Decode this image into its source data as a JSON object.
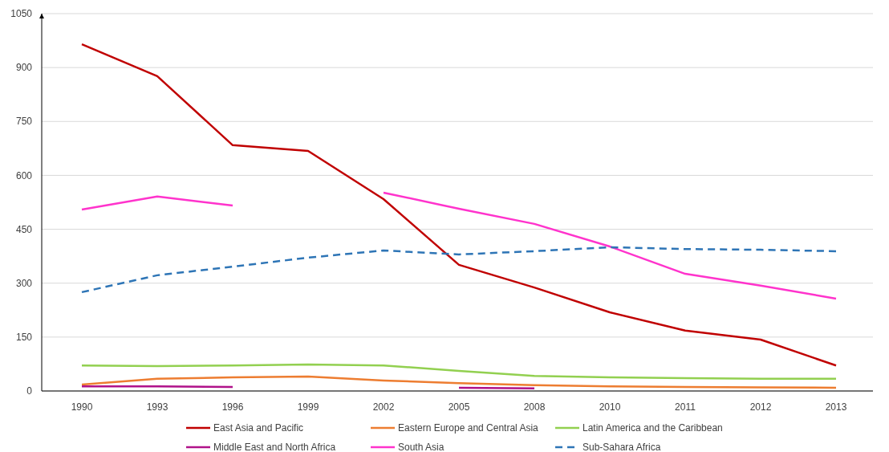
{
  "chart_data": {
    "type": "line",
    "categories": [
      "1990",
      "1993",
      "1996",
      "1999",
      "2002",
      "2005",
      "2008",
      "2010",
      "2011",
      "2012",
      "2013"
    ],
    "ylim": [
      0,
      1050
    ],
    "yticks": [
      0,
      150,
      300,
      450,
      600,
      750,
      900,
      1050
    ],
    "grid": "y",
    "legend": "bottom",
    "series": [
      {
        "name": "East Asia and Pacific",
        "color": "#c00000",
        "values": [
          965,
          876,
          684,
          668,
          534,
          351,
          288,
          219,
          168,
          143,
          71
        ]
      },
      {
        "name": "Eastern Europe and Central Asia",
        "color": "#ed7d31",
        "values": [
          18,
          34,
          38,
          40,
          29,
          22,
          16,
          13,
          11,
          10,
          9
        ]
      },
      {
        "name": "Latin America and the Caribbean",
        "color": "#92d050",
        "values": [
          71,
          69,
          71,
          74,
          71,
          56,
          42,
          38,
          36,
          34,
          34
        ]
      },
      {
        "name": "Middle East and North Africa",
        "color": "#b0128a",
        "values": [
          13,
          13,
          11,
          null,
          null,
          9,
          7,
          null,
          null,
          null,
          null
        ]
      },
      {
        "name": "South Asia",
        "color": "#ff33cc",
        "values": [
          505,
          541,
          516,
          null,
          552,
          507,
          465,
          402,
          326,
          293,
          257
        ]
      },
      {
        "name": "Sub-Sahara Africa",
        "color": "#2e75b6",
        "line_style": "dashed",
        "values": [
          275,
          322,
          346,
          371,
          391,
          380,
          389,
          400,
          395,
          393,
          389
        ]
      }
    ]
  }
}
